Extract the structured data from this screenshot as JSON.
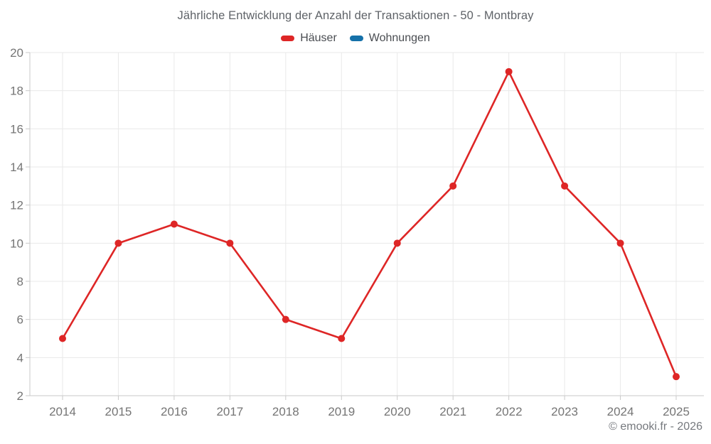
{
  "page": {
    "copyright": "© emooki.fr - 2026"
  },
  "chart_data": {
    "type": "line",
    "title": "Jährliche Entwicklung der Anzahl der Transaktionen - 50 - Montbray",
    "xlabel": "",
    "ylabel": "",
    "categories": [
      "2014",
      "2015",
      "2016",
      "2017",
      "2018",
      "2019",
      "2020",
      "2021",
      "2022",
      "2023",
      "2024",
      "2025"
    ],
    "series": [
      {
        "name": "Häuser",
        "color": "#de2626",
        "values": [
          5,
          10,
          11,
          10,
          6,
          5,
          10,
          13,
          19,
          13,
          10,
          3
        ]
      },
      {
        "name": "Wohnungen",
        "color": "#1571a9",
        "values": []
      }
    ],
    "ylim": [
      2,
      20
    ],
    "yticks": [
      2,
      4,
      6,
      8,
      10,
      12,
      14,
      16,
      18,
      20
    ],
    "grid": true,
    "legend_position": "top",
    "marker_radius": 5,
    "line_width": 2.6
  }
}
